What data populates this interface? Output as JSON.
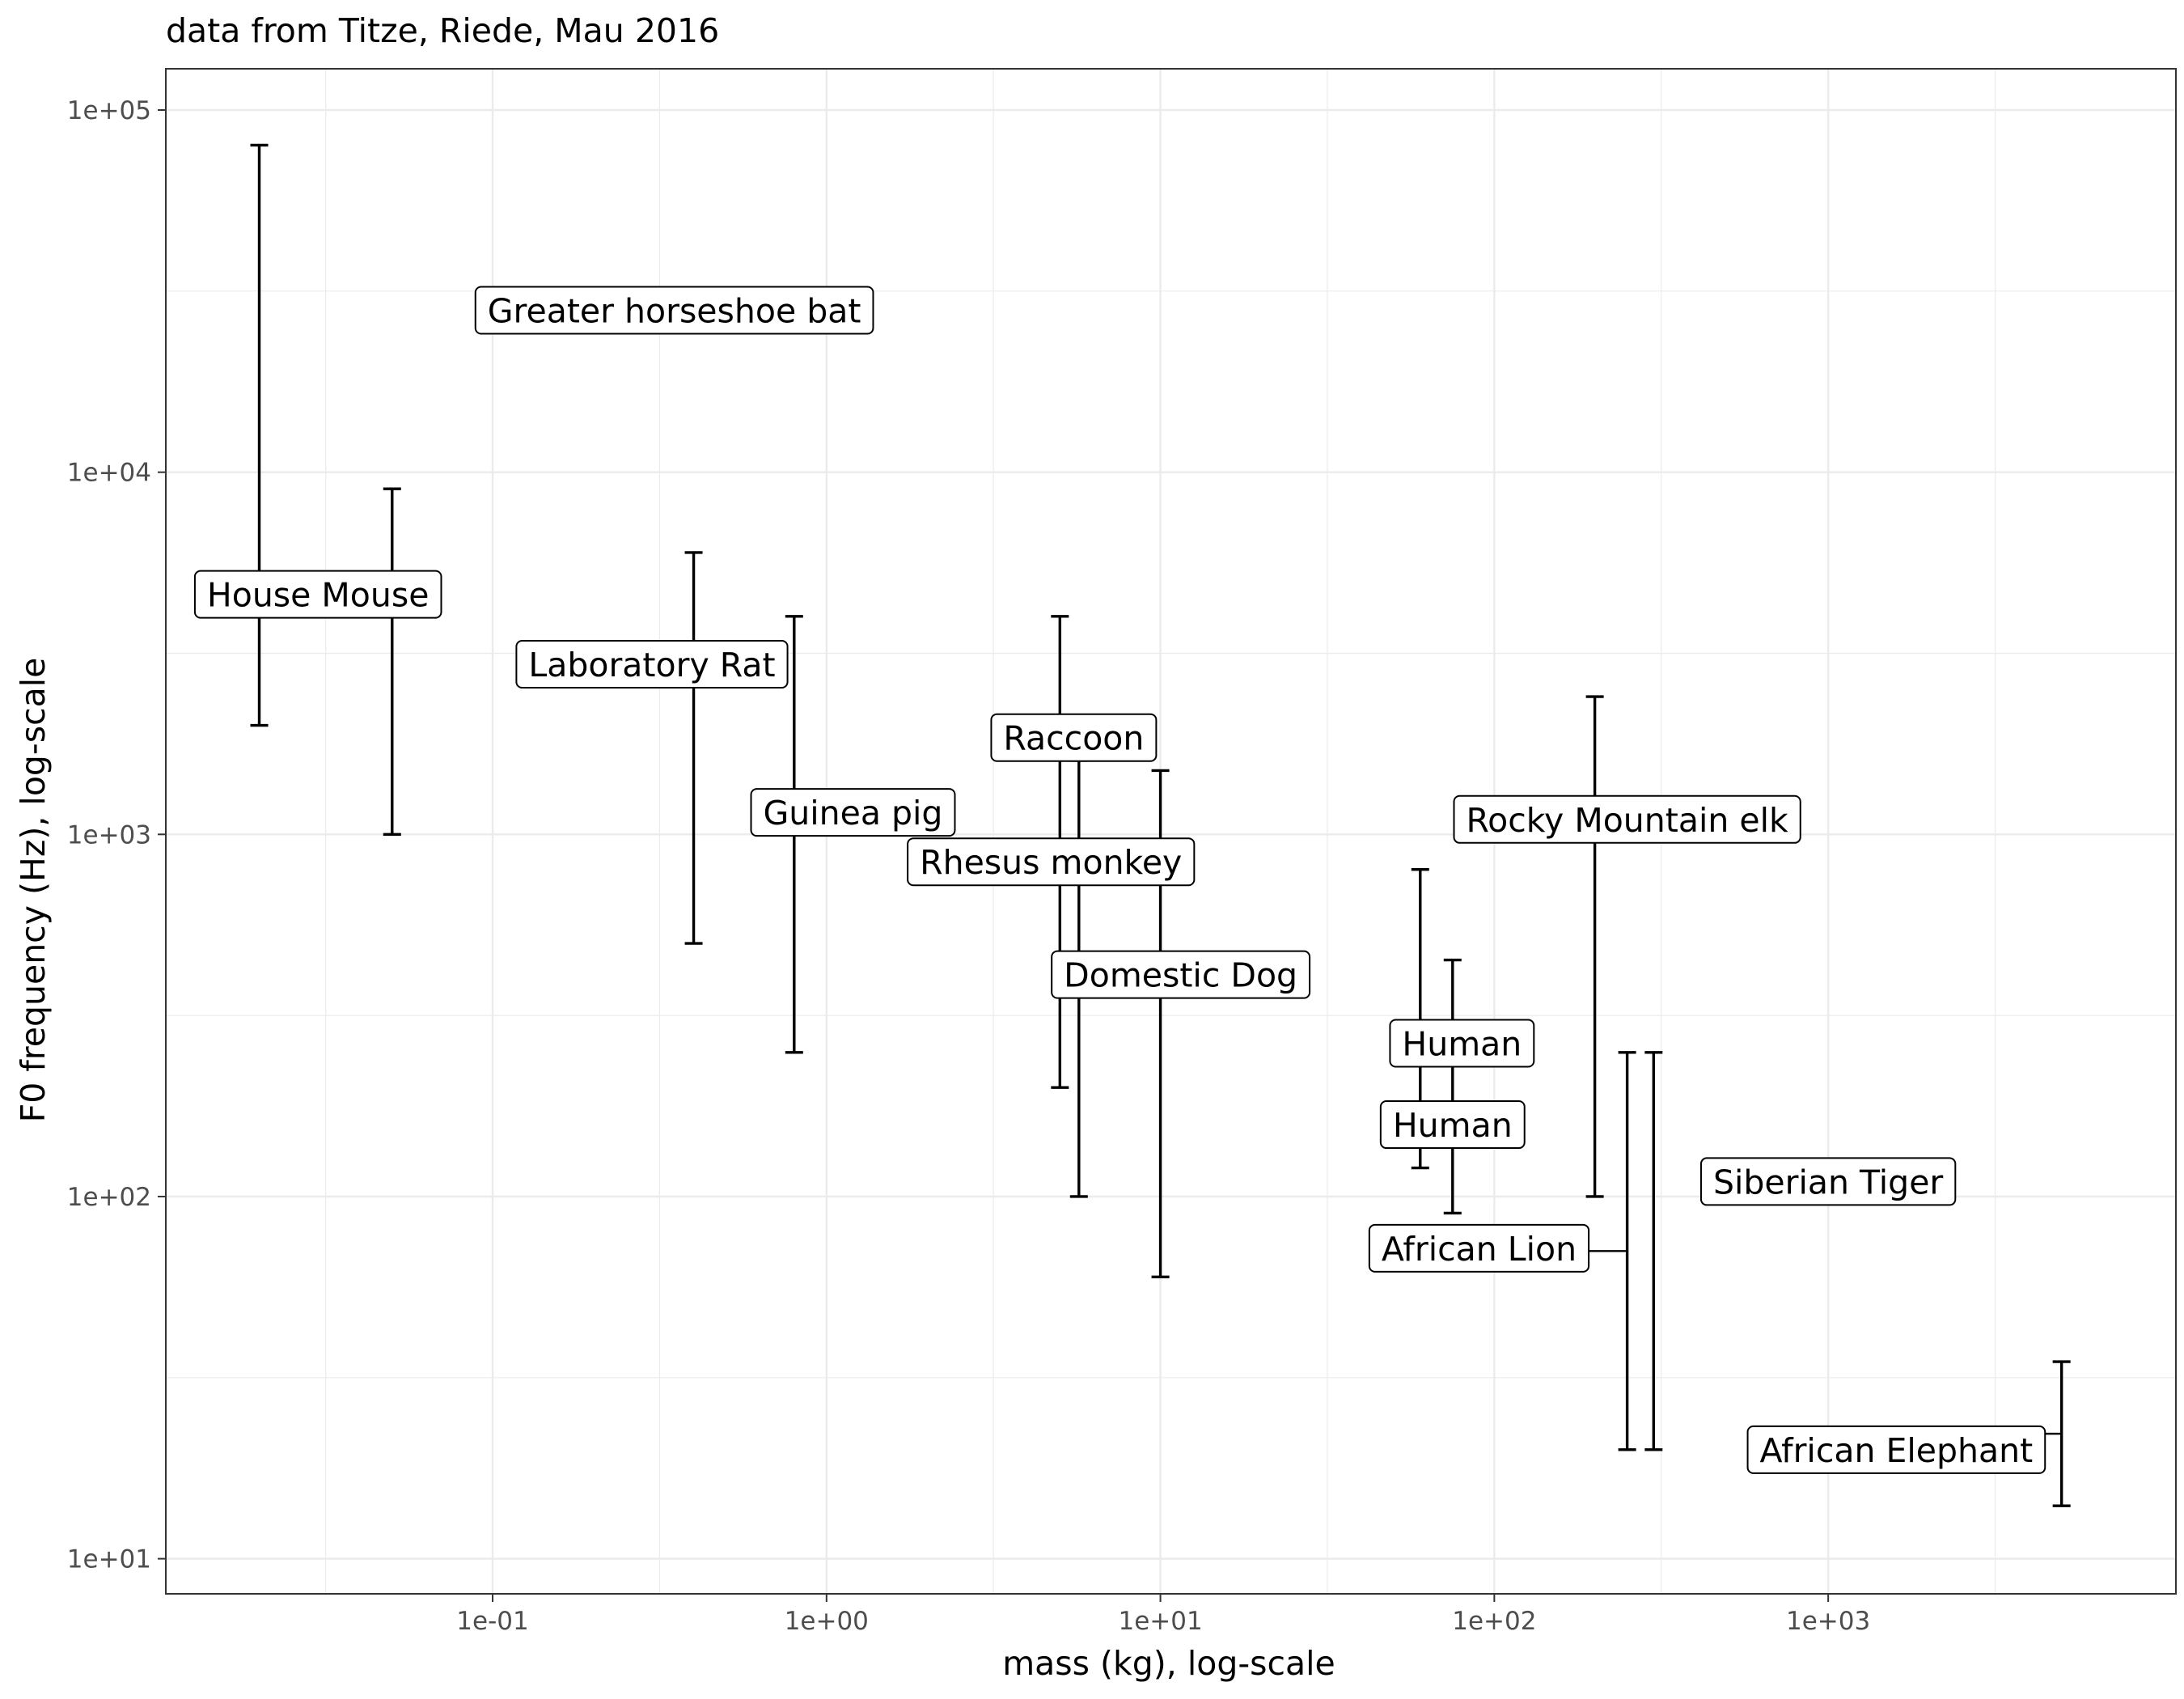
{
  "chart_data": {
    "type": "errorbar",
    "title": "data from Titze, Riede, Mau 2016",
    "xlabel": "mass (kg), log-scale",
    "ylabel": "F0 frequency (Hz), log-scale",
    "x_scale": "log10",
    "y_scale": "log10",
    "xlim": [
      0.0105,
      11000
    ],
    "ylim": [
      8,
      130000
    ],
    "x_ticks": [
      {
        "value": 0.1,
        "label": "1e-01"
      },
      {
        "value": 1,
        "label": "1e+00"
      },
      {
        "value": 10,
        "label": "1e+01"
      },
      {
        "value": 100,
        "label": "1e+02"
      },
      {
        "value": 1000,
        "label": "1e+03"
      }
    ],
    "y_ticks": [
      {
        "value": 10,
        "label": "1e+01"
      },
      {
        "value": 100,
        "label": "1e+02"
      },
      {
        "value": 1000,
        "label": "1e+03"
      },
      {
        "value": 10000,
        "label": "1e+04"
      },
      {
        "value": 100000,
        "label": "1e+05"
      }
    ],
    "grid": true,
    "legend": "none",
    "series": [
      {
        "label": "Greater horseshoe bat",
        "mass": 0.02,
        "f0_min": 2000,
        "f0_max": 80000,
        "label_mass": 0.35,
        "label_f0": 28000
      },
      {
        "label": "House Mouse",
        "mass": 0.05,
        "f0_min": 1000,
        "f0_max": 9000,
        "label_mass": 0.03,
        "label_f0": 4600
      },
      {
        "label": "Laboratory Rat",
        "mass": 0.4,
        "f0_min": 500,
        "f0_max": 6000,
        "label_mass": 0.3,
        "label_f0": 2950
      },
      {
        "label": "Guinea pig",
        "mass": 0.8,
        "f0_min": 250,
        "f0_max": 4000,
        "label_mass": 1.2,
        "label_f0": 1150
      },
      {
        "label": "Raccoon",
        "mass": 5,
        "f0_min": 200,
        "f0_max": 4000,
        "label_mass": 5.5,
        "label_f0": 1850
      },
      {
        "label": "Rhesus monkey",
        "mass": 5.7,
        "f0_min": 100,
        "f0_max": 1600,
        "label_mass": 4.7,
        "label_f0": 840
      },
      {
        "label": "Domestic Dog",
        "mass": 10,
        "f0_min": 60,
        "f0_max": 1500,
        "label_mass": 11.5,
        "label_f0": 410
      },
      {
        "label": "Human",
        "mass": 60,
        "f0_min": 120,
        "f0_max": 800,
        "label_mass": 80,
        "label_f0": 265
      },
      {
        "label": "Human",
        "mass": 75,
        "f0_min": 90,
        "f0_max": 450,
        "label_mass": 75,
        "label_f0": 158
      },
      {
        "label": "Rocky Mountain elk",
        "mass": 200,
        "f0_min": 100,
        "f0_max": 2400,
        "label_mass": 250,
        "label_f0": 1100
      },
      {
        "label": "African Lion",
        "mass": 250,
        "f0_min": 20,
        "f0_max": 250,
        "label_mass": 90,
        "label_f0": 72
      },
      {
        "label": "Siberian Tiger",
        "mass": 300,
        "f0_min": 20,
        "f0_max": 250,
        "label_mass": 1000,
        "label_f0": 110
      },
      {
        "label": "African Elephant",
        "mass": 5000,
        "f0_min": 14,
        "f0_max": 35,
        "label_mass": 1600,
        "label_f0": 20
      }
    ]
  }
}
